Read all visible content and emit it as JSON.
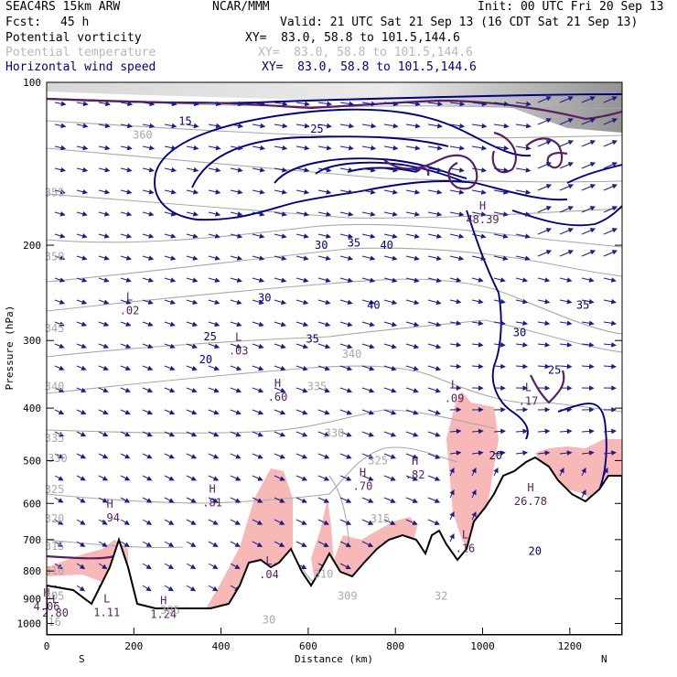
{
  "header": {
    "model": "SEAC4RS 15km ARW",
    "org": "NCAR/MMM",
    "init": "Init: 00 UTC Fri 20 Sep 13",
    "fcst_label": "Fcst:",
    "fcst_value": "45 h",
    "valid": "Valid: 21 UTC Sat 21 Sep 13 (16 CDT Sat 21 Sep 13)",
    "fields": [
      {
        "name": "Potential vorticity",
        "xy": "",
        "color": "#000000"
      },
      {
        "name": "Potential temperature",
        "xy": "",
        "color": "#b8b8b8"
      },
      {
        "name": "Horizontal wind speed",
        "xy": "",
        "color": "#000080"
      }
    ],
    "xy_black": "XY=  83.0, 58.8 to 101.5,144.6",
    "xy_gray": "XY=  83.0, 58.8 to 101.5,144.6",
    "xy_navy": "XY=  83.0, 58.8 to 101.5,144.6"
  },
  "chart_data": {
    "type": "cross-section",
    "xlabel": "Distance (km)",
    "ylabel": "Pressure (hPa)",
    "xlim": [
      0,
      1320
    ],
    "ylim": [
      1050,
      100
    ],
    "y_scale": "log-pressure",
    "x_ticks": [
      0,
      200,
      400,
      600,
      800,
      1000,
      1200
    ],
    "y_ticks": [
      100,
      200,
      300,
      400,
      500,
      600,
      700,
      800,
      900,
      1000
    ],
    "end_labels": {
      "left": "S",
      "right": "N"
    },
    "colors": {
      "wind_speed": "#000080",
      "theta": "#a8a8a8",
      "pv_label": "#5a2060",
      "high_pv_fill": "#f8b8b8",
      "terrain": "#000000",
      "wind_vectors": "#1c1c8c"
    },
    "wind_speed_contours": {
      "levels": [
        15,
        20,
        25,
        30,
        35,
        40
      ],
      "labels": [
        {
          "text": "15",
          "x": 318,
          "y": 118
        },
        {
          "text": "25",
          "x": 620,
          "y": 122
        },
        {
          "text": "30",
          "x": 630,
          "y": 200
        },
        {
          "text": "35",
          "x": 705,
          "y": 198
        },
        {
          "text": "40",
          "x": 780,
          "y": 200
        },
        {
          "text": "30",
          "x": 500,
          "y": 250
        },
        {
          "text": "25",
          "x": 375,
          "y": 295
        },
        {
          "text": "35",
          "x": 610,
          "y": 298
        },
        {
          "text": "20",
          "x": 365,
          "y": 325
        },
        {
          "text": "40",
          "x": 750,
          "y": 258
        },
        {
          "text": "35",
          "x": 1230,
          "y": 258
        },
        {
          "text": "30",
          "x": 1085,
          "y": 290
        },
        {
          "text": "25",
          "x": 1165,
          "y": 340
        },
        {
          "text": "20",
          "x": 1030,
          "y": 490
        },
        {
          "text": "20",
          "x": 1120,
          "y": 735
        }
      ]
    },
    "theta_contours": {
      "levels": [
        305,
        310,
        315,
        320,
        325,
        330,
        335,
        340,
        345,
        350,
        355,
        360
      ],
      "labels": [
        {
          "text": "360",
          "x": 220,
          "y": 125
        },
        {
          "text": "355",
          "x": 18,
          "y": 160
        },
        {
          "text": "350",
          "x": 18,
          "y": 210
        },
        {
          "text": "345",
          "x": 18,
          "y": 285
        },
        {
          "text": "340",
          "x": 18,
          "y": 365
        },
        {
          "text": "335",
          "x": 18,
          "y": 455
        },
        {
          "text": "330",
          "x": 25,
          "y": 495
        },
        {
          "text": "325",
          "x": 18,
          "y": 565
        },
        {
          "text": "320",
          "x": 18,
          "y": 640
        },
        {
          "text": "315",
          "x": 18,
          "y": 720
        },
        {
          "text": "310",
          "x": 18,
          "y": 800
        },
        {
          "text": "305",
          "x": 18,
          "y": 890
        },
        {
          "text": "340",
          "x": 700,
          "y": 318
        },
        {
          "text": "335",
          "x": 620,
          "y": 365
        },
        {
          "text": "330",
          "x": 660,
          "y": 445
        },
        {
          "text": "325",
          "x": 760,
          "y": 500
        },
        {
          "text": "315",
          "x": 765,
          "y": 640
        },
        {
          "text": "310",
          "x": 635,
          "y": 810
        },
        {
          "text": "309",
          "x": 690,
          "y": 890
        },
        {
          "text": "305",
          "x": 283,
          "y": 945
        },
        {
          "text": "30",
          "x": 510,
          "y": 985
        },
        {
          "text": "32",
          "x": 905,
          "y": 890
        },
        {
          "text": "16",
          "x": 18,
          "y": 995
        }
      ]
    },
    "pv_extrema": [
      {
        "kind": "H",
        "value": "48.39",
        "x": 1000,
        "y": 180
      },
      {
        "kind": "L",
        "value": ".02",
        "x": 190,
        "y": 265
      },
      {
        "kind": "L",
        "value": ".03",
        "x": 440,
        "y": 315
      },
      {
        "kind": "H",
        "value": ".60",
        "x": 530,
        "y": 383
      },
      {
        "kind": "L",
        "value": ".09",
        "x": 935,
        "y": 385
      },
      {
        "kind": "L",
        "value": ".17",
        "x": 1105,
        "y": 390
      },
      {
        "kind": "H",
        "value": ".82",
        "x": 845,
        "y": 533
      },
      {
        "kind": "H",
        "value": ".70",
        "x": 725,
        "y": 560
      },
      {
        "kind": "H",
        "value": ".81",
        "x": 380,
        "y": 600
      },
      {
        "kind": "H",
        "value": ".94",
        "x": 145,
        "y": 640
      },
      {
        "kind": "H",
        "value": "26.78",
        "x": 1110,
        "y": 597
      },
      {
        "kind": "H",
        "value": "4.06",
        "x": 0,
        "y": 935
      },
      {
        "kind": "L",
        "value": "2.80",
        "x": 20,
        "y": 960
      },
      {
        "kind": "L",
        "value": "1.11",
        "x": 138,
        "y": 958
      },
      {
        "kind": "H",
        "value": "1.24",
        "x": 268,
        "y": 965
      },
      {
        "kind": "L",
        "value": ".04",
        "x": 510,
        "y": 815
      },
      {
        "kind": "L",
        "value": ".16",
        "x": 960,
        "y": 730
      }
    ]
  }
}
